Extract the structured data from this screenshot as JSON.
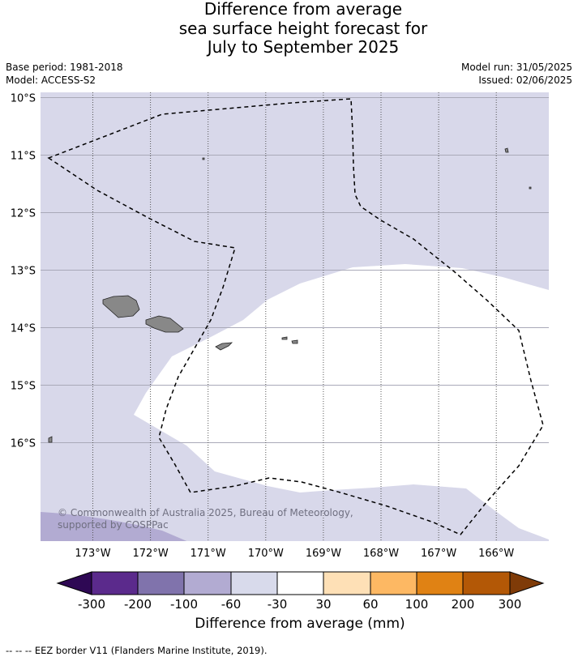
{
  "title": {
    "line1": "Difference from average",
    "line2": "sea surface height forecast for",
    "line3": "July to September 2025"
  },
  "meta": {
    "base_period": "Base period: 1981-2018",
    "model": "Model: ACCESS-S2",
    "model_run": "Model run: 31/05/2025",
    "issued": "Issued: 02/06/2025"
  },
  "map": {
    "lat_labels": [
      "10°S",
      "11°S",
      "12°S",
      "13°S",
      "14°S",
      "15°S",
      "16°S"
    ],
    "lon_labels": [
      "173°W",
      "172°W",
      "171°W",
      "170°W",
      "169°W",
      "168°W",
      "167°W",
      "166°W"
    ],
    "colors": {
      "ocean_bg": "#d8d8ea",
      "anomaly_neutral": "#ffffff",
      "anomaly_low": "#b2abd2",
      "land": "#888888"
    },
    "copyright": "© Commonwealth of Australia 2025, Bureau of Meteorology, supported by COSPPac"
  },
  "colorbar": {
    "ticks": [
      "-300",
      "-200",
      "-100",
      "-60",
      "-30",
      "30",
      "60",
      "100",
      "200",
      "300"
    ],
    "colors": [
      "#2e0854",
      "#5b2a8c",
      "#8073ac",
      "#b2abd2",
      "#d8daeb",
      "#ffffff",
      "#fee0b6",
      "#fdb863",
      "#e08214",
      "#b35806",
      "#7f3b08"
    ],
    "label": "Difference from average (mm)"
  },
  "footnote": "--  --  -- EEZ border V11 (Flanders Marine Institute, 2019)."
}
